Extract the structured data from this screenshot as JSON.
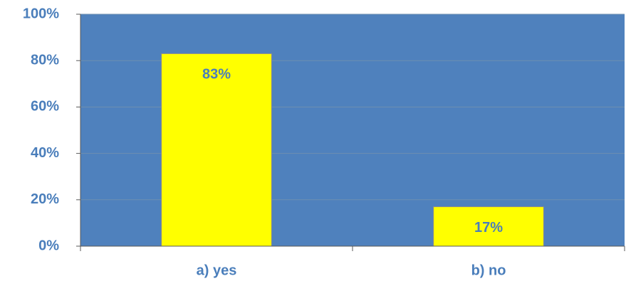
{
  "chart_data": {
    "type": "bar",
    "categories": [
      "a) yes",
      "b) no"
    ],
    "values": [
      83,
      17
    ],
    "data_labels": [
      "83%",
      "17%"
    ],
    "ylim": [
      0,
      100
    ],
    "yticks": [
      0,
      20,
      40,
      60,
      80,
      100
    ],
    "ytick_labels": [
      "0%",
      "20%",
      "40%",
      "60%",
      "80%",
      "100%"
    ],
    "title": "",
    "xlabel": "",
    "ylabel": "",
    "grid": true,
    "legend": "none"
  },
  "colors": {
    "plot_background": "#4F81BD",
    "bar_fill": "#FFFF00",
    "bar_stroke": "#8C8C8C",
    "text": "#4A7EBB",
    "gridline": "#6E8FB0",
    "axis": "#595959"
  }
}
